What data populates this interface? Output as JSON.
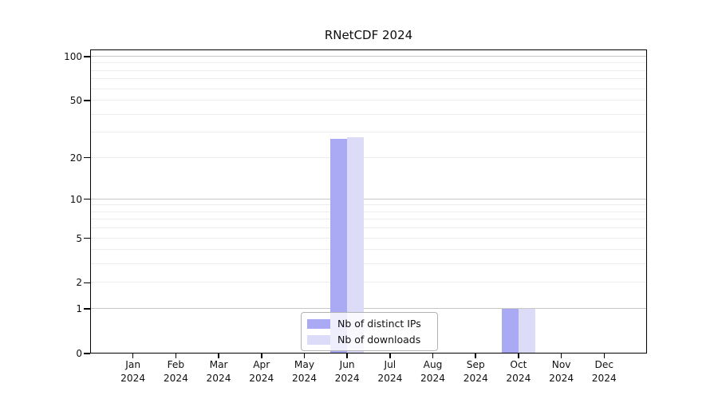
{
  "chart_data": {
    "type": "bar",
    "title": "RNetCDF 2024",
    "categories": [
      "Jan 2024",
      "Feb 2024",
      "Mar 2024",
      "Apr 2024",
      "May 2024",
      "Jun 2024",
      "Jul 2024",
      "Aug 2024",
      "Sep 2024",
      "Oct 2024",
      "Nov 2024",
      "Dec 2024"
    ],
    "x_axis": {
      "months": [
        "Jan",
        "Feb",
        "Mar",
        "Apr",
        "May",
        "Jun",
        "Jul",
        "Aug",
        "Sep",
        "Oct",
        "Nov",
        "Dec"
      ],
      "year": "2024"
    },
    "y_axis": {
      "scale": "log-like (0 at baseline)",
      "tick_labels": [
        0,
        1,
        2,
        5,
        10,
        20,
        50,
        100
      ],
      "major_gridlines": [
        1,
        10,
        100
      ],
      "minor_gridlines": [
        2,
        3,
        4,
        5,
        6,
        7,
        8,
        9,
        20,
        30,
        40,
        50,
        60,
        70,
        80,
        90
      ],
      "ylim": [
        0,
        112
      ]
    },
    "series": [
      {
        "name": "Nb of distinct IPs",
        "color": "#a9a9f4",
        "values": [
          0,
          0,
          0,
          0,
          0,
          27,
          0,
          0,
          0,
          1,
          0,
          0
        ]
      },
      {
        "name": "Nb of downloads",
        "color": "#dcdcf8",
        "values": [
          0,
          0,
          0,
          0,
          0,
          28,
          0,
          0,
          0,
          1,
          0,
          0
        ]
      }
    ],
    "legend": {
      "position": "lower center",
      "entries": [
        "Nb of distinct IPs",
        "Nb of downloads"
      ]
    },
    "colors": {
      "gridline_major": "#c7c7c7",
      "gridline_minor": "#ededed",
      "axis": "#000000",
      "background": "#ffffff"
    },
    "grid": "on"
  }
}
